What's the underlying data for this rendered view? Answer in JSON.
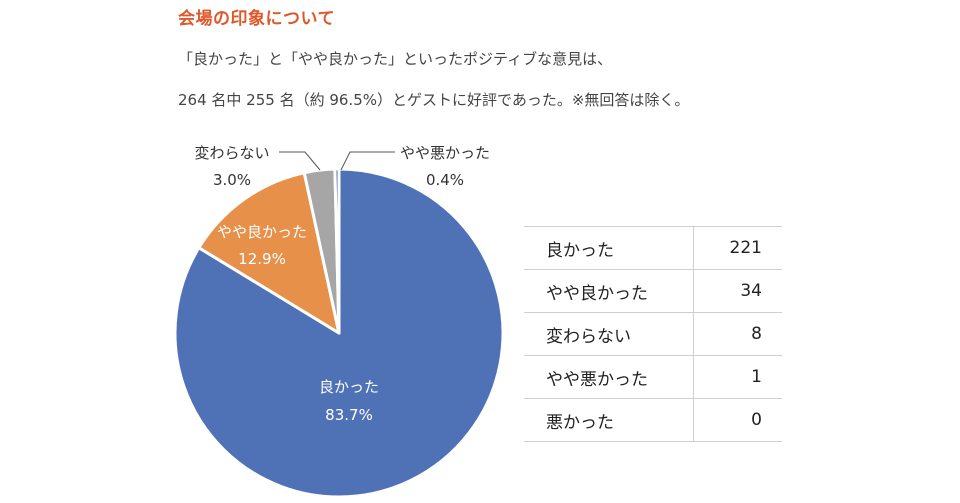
{
  "heading": "会場の印象について",
  "intro": {
    "line1": "「良かった」と「やや良かった」といったポジティブな意見は、",
    "line2": "264 名中 255 名（約 96.5%）とゲストに好評であった。※無回答は除く。"
  },
  "chart_data": {
    "type": "pie",
    "slices": [
      {
        "label": "良かった",
        "value": 83.7,
        "value_label": "83.7%",
        "color": "#4f72b6"
      },
      {
        "label": "やや良かった",
        "value": 12.9,
        "value_label": "12.9%",
        "color": "#e6904a"
      },
      {
        "label": "変わらない",
        "value": 3.0,
        "value_label": "3.0%",
        "color": "#a6a6a6"
      },
      {
        "label": "やや悪かった",
        "value": 0.4,
        "value_label": "0.4%",
        "color": "#4f72b6"
      }
    ]
  },
  "table": {
    "rows": [
      {
        "label": "良かった",
        "value": "221"
      },
      {
        "label": "やや良かった",
        "value": "34"
      },
      {
        "label": "変わらない",
        "value": "8"
      },
      {
        "label": "やや悪かった",
        "value": "1"
      },
      {
        "label": "悪かった",
        "value": "0"
      }
    ]
  }
}
